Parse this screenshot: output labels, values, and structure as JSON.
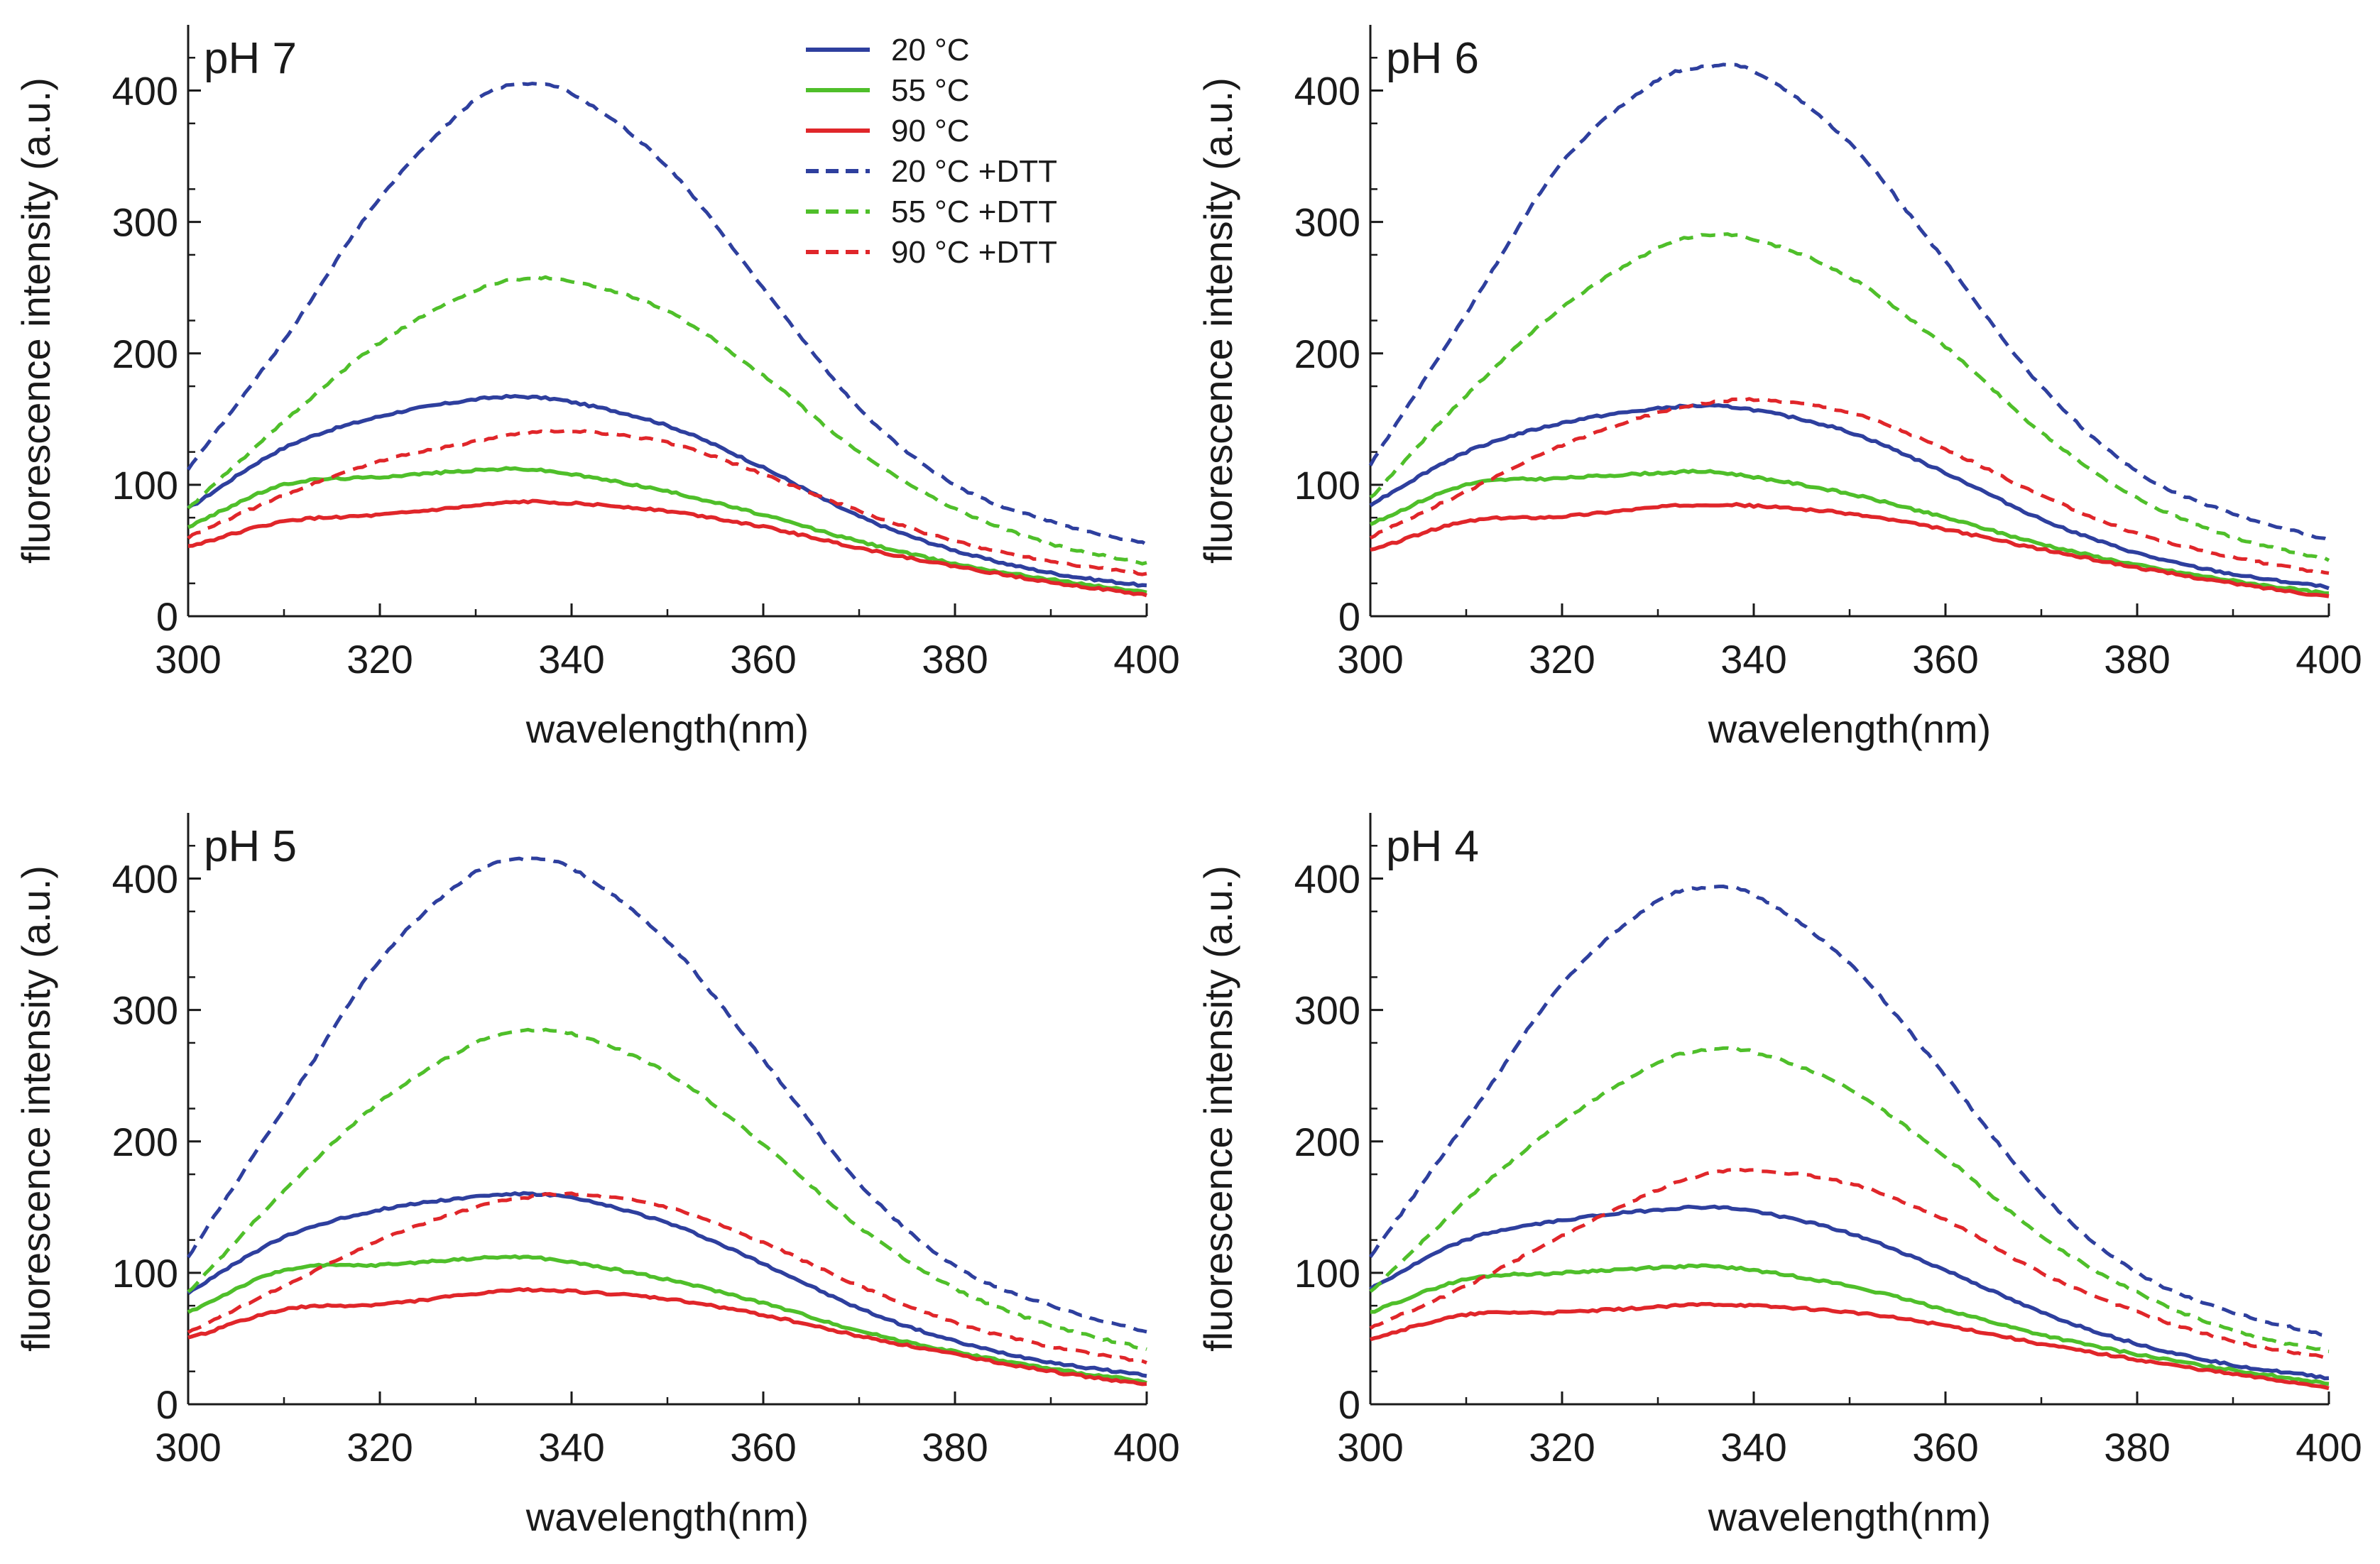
{
  "figure": {
    "legend_position": "top-right of first panel"
  },
  "series_styles": [
    {
      "name": "20 °C",
      "color": "#2e3f9e",
      "dashed": false
    },
    {
      "name": "55 °C",
      "color": "#4fbf2a",
      "dashed": false
    },
    {
      "name": "90 °C",
      "color": "#e0262a",
      "dashed": false
    },
    {
      "name": "20 °C +DTT",
      "color": "#2e3f9e",
      "dashed": true
    },
    {
      "name": "55 °C +DTT",
      "color": "#4fbf2a",
      "dashed": true
    },
    {
      "name": "90 °C +DTT",
      "color": "#e0262a",
      "dashed": true
    }
  ],
  "chart_data": [
    {
      "type": "line",
      "title": "pH 7",
      "xlabel": "wavelength(nm)",
      "ylabel": "fluorescence intensity (a.u.)",
      "xlim": [
        300,
        400
      ],
      "ylim": [
        0,
        450
      ],
      "xticks": [
        "300",
        "320",
        "340",
        "360",
        "380",
        "400"
      ],
      "yticks": [
        "0",
        "100",
        "200",
        "300",
        "400"
      ],
      "x": [
        300,
        310,
        320,
        330,
        335,
        340,
        350,
        360,
        370,
        380,
        390,
        400
      ],
      "series": [
        {
          "name": "20 °C",
          "values": [
            82,
            128,
            152,
            165,
            167,
            163,
            145,
            113,
            76,
            50,
            33,
            23
          ]
        },
        {
          "name": "55 °C",
          "values": [
            68,
            100,
            106,
            111,
            112,
            108,
            95,
            77,
            57,
            40,
            28,
            18
          ]
        },
        {
          "name": "90 °C",
          "values": [
            53,
            72,
            77,
            84,
            87,
            86,
            80,
            68,
            52,
            38,
            26,
            16
          ]
        },
        {
          "name": "20 °C +DTT",
          "values": [
            112,
            210,
            318,
            393,
            405,
            398,
            342,
            250,
            158,
            100,
            72,
            55
          ]
        },
        {
          "name": "55 °C +DTT",
          "values": [
            82,
            148,
            208,
            248,
            257,
            255,
            232,
            183,
            125,
            82,
            55,
            40
          ]
        },
        {
          "name": "90 °C +DTT",
          "values": [
            60,
            92,
            118,
            133,
            139,
            141,
            132,
            108,
            80,
            57,
            42,
            32
          ]
        }
      ]
    },
    {
      "type": "line",
      "title": "pH 6",
      "xlabel": "wavelength(nm)",
      "ylabel": "fluorescence intensity (a.u.)",
      "xlim": [
        300,
        400
      ],
      "ylim": [
        0,
        450
      ],
      "xticks": [
        "300",
        "320",
        "340",
        "360",
        "380",
        "400"
      ],
      "yticks": [
        "0",
        "100",
        "200",
        "300",
        "400"
      ],
      "x": [
        300,
        310,
        320,
        330,
        335,
        340,
        350,
        360,
        370,
        380,
        390,
        400
      ],
      "series": [
        {
          "name": "20 °C",
          "values": [
            85,
            125,
            147,
            158,
            160,
            157,
            140,
            109,
            74,
            48,
            32,
            22
          ]
        },
        {
          "name": "55 °C",
          "values": [
            70,
            100,
            105,
            109,
            110,
            106,
            93,
            75,
            55,
            39,
            27,
            17
          ]
        },
        {
          "name": "90 °C",
          "values": [
            50,
            72,
            76,
            83,
            85,
            84,
            78,
            66,
            51,
            37,
            25,
            15
          ]
        },
        {
          "name": "20 °C +DTT",
          "values": [
            115,
            230,
            345,
            408,
            418,
            415,
            360,
            270,
            175,
            110,
            78,
            58
          ]
        },
        {
          "name": "55 °C +DTT",
          "values": [
            90,
            168,
            235,
            280,
            290,
            287,
            258,
            205,
            140,
            90,
            60,
            43
          ]
        },
        {
          "name": "90 °C +DTT",
          "values": [
            60,
            95,
            130,
            155,
            162,
            165,
            155,
            127,
            92,
            63,
            45,
            32
          ]
        }
      ]
    },
    {
      "type": "line",
      "title": "pH 5",
      "xlabel": "wavelength(nm)",
      "ylabel": "fluorescence intensity (a.u.)",
      "xlim": [
        300,
        400
      ],
      "ylim": [
        0,
        450
      ],
      "xticks": [
        "300",
        "320",
        "340",
        "360",
        "380",
        "400"
      ],
      "yticks": [
        "0",
        "100",
        "200",
        "300",
        "400"
      ],
      "x": [
        300,
        310,
        320,
        330,
        335,
        340,
        350,
        360,
        370,
        380,
        390,
        400
      ],
      "series": [
        {
          "name": "20 °C",
          "values": [
            85,
            127,
            148,
            158,
            160,
            157,
            138,
            107,
            73,
            48,
            32,
            22
          ]
        },
        {
          "name": "55 °C",
          "values": [
            70,
            102,
            106,
            111,
            112,
            108,
            95,
            77,
            56,
            40,
            27,
            17
          ]
        },
        {
          "name": "90 °C",
          "values": [
            50,
            72,
            76,
            84,
            87,
            86,
            80,
            68,
            52,
            38,
            25,
            15
          ]
        },
        {
          "name": "20 °C +DTT",
          "values": [
            112,
            225,
            338,
            405,
            415,
            408,
            352,
            262,
            168,
            105,
            75,
            55
          ]
        },
        {
          "name": "55 °C +DTT",
          "values": [
            85,
            162,
            230,
            275,
            284,
            282,
            252,
            198,
            135,
            88,
            60,
            42
          ]
        },
        {
          "name": "90 °C +DTT",
          "values": [
            55,
            90,
            125,
            150,
            157,
            160,
            150,
            123,
            90,
            62,
            44,
            32
          ]
        }
      ]
    },
    {
      "type": "line",
      "title": "pH 4",
      "xlabel": "wavelength(nm)",
      "ylabel": "fluorescence intensity (a.u.)",
      "xlim": [
        300,
        400
      ],
      "ylim": [
        0,
        450
      ],
      "xticks": [
        "300",
        "320",
        "340",
        "360",
        "380",
        "400"
      ],
      "yticks": [
        "0",
        "100",
        "200",
        "300",
        "400"
      ],
      "x": [
        300,
        310,
        320,
        330,
        335,
        340,
        350,
        360,
        370,
        380,
        390,
        400
      ],
      "series": [
        {
          "name": "20 °C",
          "values": [
            88,
            125,
            140,
            148,
            150,
            147,
            130,
            102,
            70,
            46,
            30,
            20
          ]
        },
        {
          "name": "55 °C",
          "values": [
            70,
            95,
            100,
            104,
            105,
            102,
            90,
            72,
            53,
            38,
            26,
            16
          ]
        },
        {
          "name": "90 °C",
          "values": [
            50,
            68,
            70,
            74,
            76,
            75,
            70,
            60,
            46,
            34,
            23,
            13
          ]
        },
        {
          "name": "20 °C +DTT",
          "values": [
            112,
            215,
            320,
            383,
            393,
            388,
            335,
            250,
            160,
            100,
            70,
            52
          ]
        },
        {
          "name": "55 °C +DTT",
          "values": [
            85,
            155,
            215,
            260,
            270,
            268,
            240,
            188,
            128,
            85,
            56,
            40
          ]
        },
        {
          "name": "90 °C +DTT",
          "values": [
            58,
            90,
            128,
            163,
            175,
            178,
            168,
            140,
            100,
            70,
            48,
            35
          ]
        }
      ]
    }
  ]
}
